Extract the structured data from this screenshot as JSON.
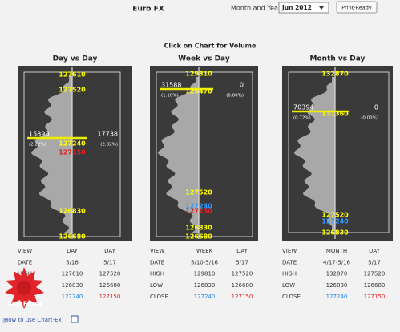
{
  "header": {
    "title": "Euro FX",
    "month_label": "Month and Year:",
    "month_value": "Jun 2012",
    "button": "Print-Ready"
  },
  "instruction": "Click on Chart for Volume",
  "panels": [
    {
      "title": "Day vs Day",
      "price_labels": [
        "127610",
        "127520",
        "127240",
        "127150",
        "126830",
        "126680"
      ],
      "left_volume": "15890",
      "left_pct": "(2.22%)",
      "right_volume": "17738",
      "right_pct": "(2.82%)",
      "table": [
        [
          "VIEW",
          "DAY",
          "DAY"
        ],
        [
          "DATE",
          "5/16",
          "5/17"
        ],
        [
          "HIGH",
          "127610",
          "127520"
        ],
        [
          "LOW",
          "126830",
          "126680"
        ],
        [
          "CLOSE",
          "127240",
          "127150"
        ]
      ]
    },
    {
      "title": "Week vs Day",
      "price_labels": [
        "129810",
        "129470",
        "127520",
        "127240",
        "127150",
        "126830",
        "126680"
      ],
      "left_volume": "31588",
      "left_pct": "(1.10%)",
      "right_volume": "0",
      "right_pct": "(0.00%)",
      "table": [
        [
          "VIEW",
          "WEEK",
          "DAY"
        ],
        [
          "DATE",
          "5/10-5/16",
          "5/17"
        ],
        [
          "HIGH",
          "129810",
          "127520"
        ],
        [
          "LOW",
          "126830",
          "126680"
        ],
        [
          "CLOSE",
          "127240",
          "127150"
        ]
      ]
    },
    {
      "title": "Month vs Day",
      "price_labels": [
        "132870",
        "131360",
        "127520",
        "127240",
        "126830"
      ],
      "left_volume": "70394",
      "left_pct": "(0.72%)",
      "right_volume": "0",
      "right_pct": "(0.00%)",
      "table": [
        [
          "VIEW",
          "MONTH",
          "DAY"
        ],
        [
          "DATE",
          "4/17-5/16",
          "5/17"
        ],
        [
          "HIGH",
          "132870",
          "127520"
        ],
        [
          "LOW",
          "126830",
          "126680"
        ],
        [
          "CLOSE",
          "127240",
          "127150"
        ]
      ]
    }
  ],
  "footer": "How to use Chart-Ex",
  "logo": "InstaForex"
}
